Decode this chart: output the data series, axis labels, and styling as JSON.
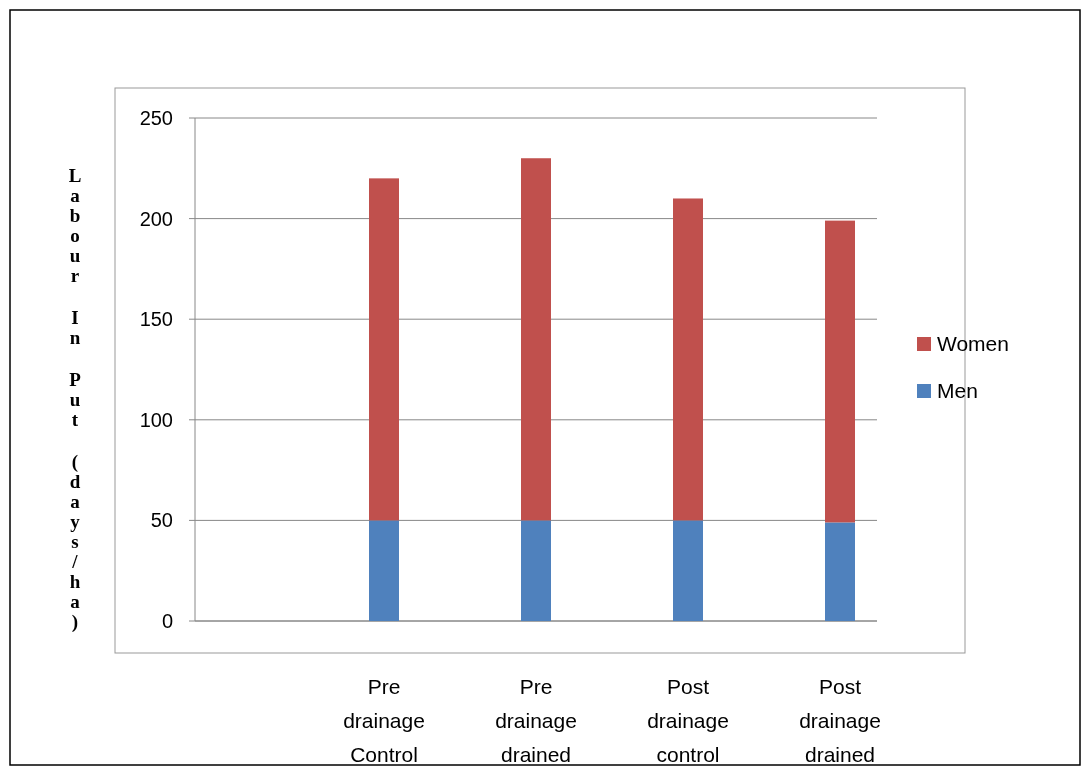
{
  "chart_data": {
    "type": "bar",
    "stacked": true,
    "ylabel": "Labour In Put (days/ha)",
    "categories": [
      null,
      "Pre drainage Control",
      "Pre drainage drained",
      "Post drainage control",
      "Post drainage drained"
    ],
    "series": [
      {
        "name": "Men",
        "color": "#4f81bd",
        "values": [
          null,
          50,
          50,
          50,
          49
        ]
      },
      {
        "name": "Women",
        "color": "#c0504d",
        "values": [
          null,
          170,
          180,
          160,
          150
        ]
      }
    ],
    "ylim": [
      0,
      250
    ],
    "yticks": [
      0,
      50,
      100,
      150,
      200,
      250
    ],
    "grid": "y",
    "legend": "right"
  }
}
